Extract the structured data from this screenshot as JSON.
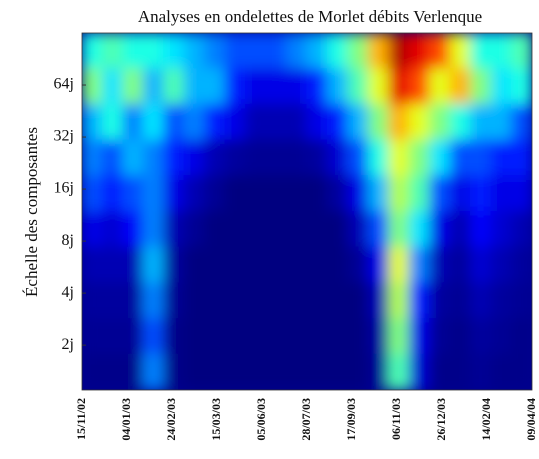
{
  "chart_data": {
    "type": "heatmap",
    "title": "Analyses en ondelettes de Morlet débits Verlenque",
    "y_label": "Échelle des composantes",
    "categories": [
      "15/11/02",
      "04/01/03",
      "24/02/03",
      "15/03/03",
      "05/06/03",
      "28/07/03",
      "17/09/03",
      "06/11/03",
      "26/12/03",
      "14/02/04",
      "09/04/04"
    ],
    "y_scale": "log",
    "ylim": [
      1.1,
      128
    ],
    "yticks": [
      {
        "value": 2,
        "label": "2j"
      },
      {
        "value": 4,
        "label": "4j"
      },
      {
        "value": 8,
        "label": "8j"
      },
      {
        "value": 16,
        "label": "16j"
      },
      {
        "value": 32,
        "label": "32j"
      },
      {
        "value": 64,
        "label": "64j"
      }
    ],
    "colormap": "jet",
    "z": [
      [
        0.4,
        0.45,
        0.4,
        0.4,
        0.35,
        0.3,
        0.25,
        0.2,
        0.2,
        0.2,
        0.25,
        0.3,
        0.4,
        0.5,
        0.7,
        0.95,
        0.9,
        0.8,
        0.6,
        0.4,
        0.4,
        0.45
      ],
      [
        0.5,
        0.35,
        0.5,
        0.3,
        0.45,
        0.3,
        0.3,
        0.15,
        0.1,
        0.1,
        0.1,
        0.15,
        0.3,
        0.45,
        0.6,
        0.9,
        0.8,
        0.6,
        0.7,
        0.5,
        0.35,
        0.4
      ],
      [
        0.3,
        0.4,
        0.25,
        0.35,
        0.2,
        0.25,
        0.15,
        0.1,
        0.05,
        0.05,
        0.05,
        0.1,
        0.15,
        0.3,
        0.5,
        0.7,
        0.6,
        0.5,
        0.4,
        0.3,
        0.3,
        0.2
      ],
      [
        0.25,
        0.2,
        0.3,
        0.25,
        0.15,
        0.1,
        0.05,
        0.03,
        0.02,
        0.02,
        0.02,
        0.03,
        0.08,
        0.2,
        0.4,
        0.6,
        0.5,
        0.35,
        0.2,
        0.2,
        0.15,
        0.15
      ],
      [
        0.2,
        0.15,
        0.2,
        0.25,
        0.1,
        0.05,
        0.02,
        0,
        0,
        0,
        0,
        0,
        0.03,
        0.1,
        0.3,
        0.55,
        0.45,
        0.2,
        0.1,
        0.15,
        0.1,
        0.1
      ],
      [
        0.1,
        0.08,
        0.12,
        0.25,
        0.05,
        0.02,
        0,
        0,
        0,
        0,
        0,
        0,
        0,
        0.05,
        0.2,
        0.5,
        0.35,
        0.1,
        0.05,
        0.12,
        0.08,
        0.05
      ],
      [
        0.05,
        0.05,
        0.05,
        0.3,
        0.03,
        0,
        0,
        0,
        0,
        0,
        0,
        0,
        0,
        0.02,
        0.1,
        0.6,
        0.25,
        0.05,
        0.03,
        0.08,
        0.05,
        0.03
      ],
      [
        0.03,
        0.03,
        0.03,
        0.25,
        0.02,
        0,
        0,
        0,
        0,
        0,
        0,
        0,
        0,
        0,
        0.05,
        0.55,
        0.15,
        0.03,
        0.02,
        0.05,
        0.03,
        0.02
      ],
      [
        0.02,
        0.02,
        0.02,
        0.2,
        0.01,
        0,
        0,
        0,
        0,
        0,
        0,
        0,
        0,
        0,
        0.03,
        0.5,
        0.1,
        0.02,
        0.01,
        0.03,
        0.02,
        0.01
      ],
      [
        0.01,
        0.01,
        0.01,
        0.25,
        0.01,
        0,
        0,
        0,
        0,
        0,
        0,
        0,
        0,
        0,
        0.02,
        0.45,
        0.08,
        0.01,
        0.01,
        0.02,
        0.01,
        0.01
      ]
    ]
  }
}
